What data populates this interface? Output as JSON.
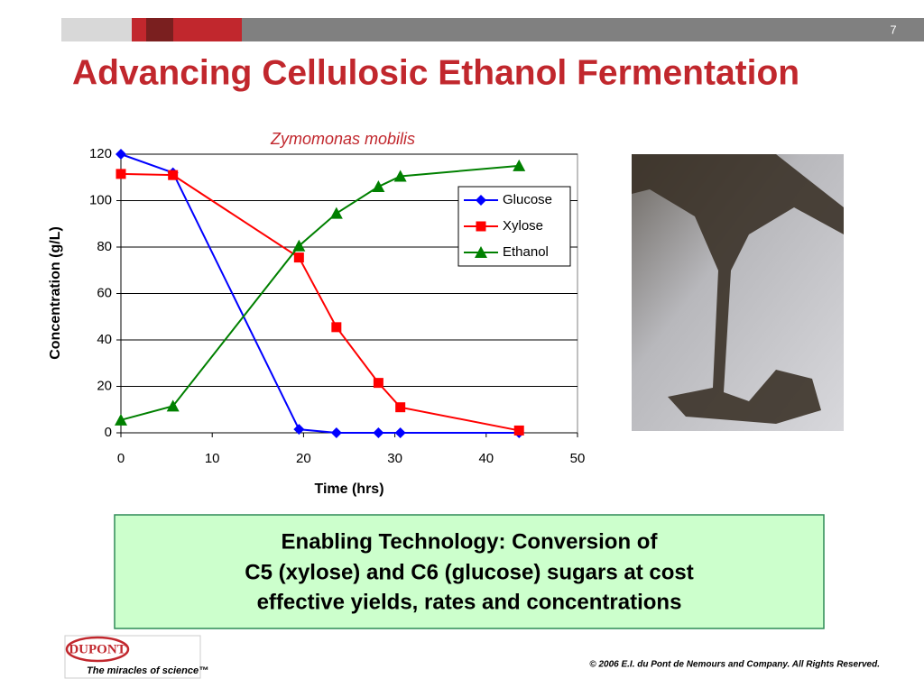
{
  "slide": {
    "page_number": "7",
    "title": "Advancing Cellulosic Ethanol Fermentation",
    "callout": [
      "Enabling Technology: Conversion of",
      "C5 (xylose) and C6 (glucose) sugars at cost",
      "effective yields, rates and concentrations"
    ],
    "logo": "DUPONT",
    "tagline": "The miracles of science™",
    "copyright": "© 2006 E.I. du Pont de Nemours and Company. All Rights Reserved."
  },
  "chart_data": {
    "type": "line",
    "title": "Zymomonas mobilis",
    "x_label": "Time (hrs)",
    "y_label": "Concentration (g/L)",
    "x": [
      0,
      5.7,
      19.5,
      23.6,
      28.2,
      30.6,
      43.6
    ],
    "series": [
      {
        "name": "Glucose",
        "color": "#0000ff",
        "marker": "diamond",
        "values": [
          120,
          112,
          1.5,
          0,
          0,
          0,
          0
        ]
      },
      {
        "name": "Xylose",
        "color": "#ff0000",
        "marker": "square",
        "values": [
          111.5,
          111,
          75.5,
          45.5,
          21.5,
          11,
          1
        ]
      },
      {
        "name": "Ethanol",
        "color": "#008000",
        "marker": "triangle",
        "values": [
          5.5,
          11.5,
          80.5,
          94.5,
          106,
          110.5,
          115
        ]
      }
    ],
    "xlim": [
      0,
      50
    ],
    "xticks": [
      0,
      10,
      20,
      30,
      40,
      50
    ],
    "ylim": [
      0,
      120
    ],
    "yticks": [
      0,
      20,
      40,
      60,
      80,
      100,
      120
    ],
    "grid": true,
    "legend": "upper right"
  }
}
